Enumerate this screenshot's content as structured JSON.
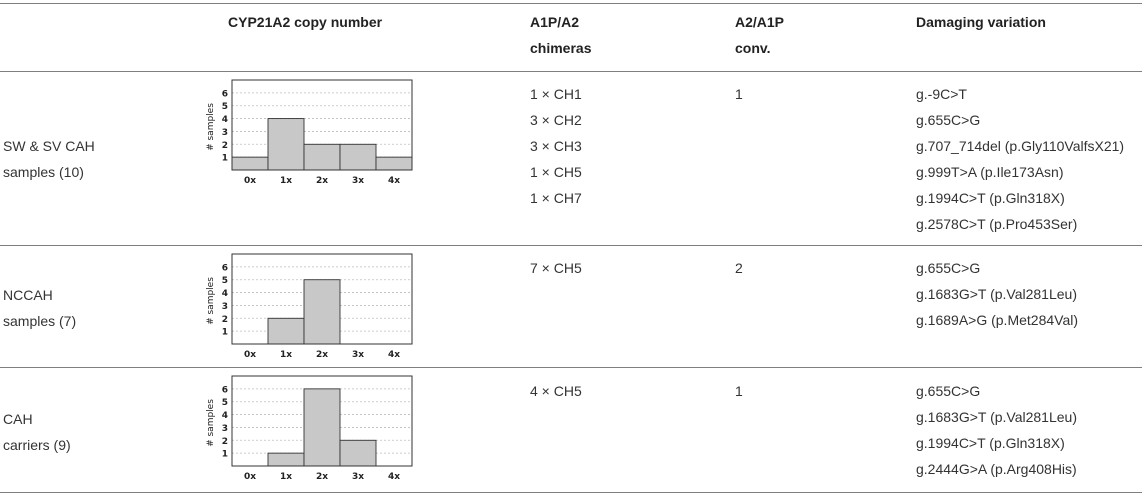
{
  "headers": {
    "group": "",
    "copy_number": "CYP21A2 copy number",
    "chimeras_line1": "A1P/A2",
    "chimeras_line2": "chimeras",
    "conv_line1": "A2/A1P",
    "conv_line2": "conv.",
    "damaging": "Damaging variation"
  },
  "rows": [
    {
      "group_line1": "SW & SV CAH",
      "group_line2": "samples (10)",
      "chimeras": [
        "1 × CH1",
        "3 × CH2",
        "3 × CH3",
        "1 × CH5",
        "1 × CH7"
      ],
      "conv": "1",
      "damaging": [
        "g.-9C>T",
        "g.655C>G",
        "g.707_714del (p.Gly110ValfsX21)",
        "g.999T>A (p.Ile173Asn)",
        "g.1994C>T (p.Gln318X)",
        "g.2578C>T (p.Pro453Ser)"
      ]
    },
    {
      "group_line1": "NCCAH",
      "group_line2": "samples (7)",
      "chimeras": [
        "7 × CH5"
      ],
      "conv": "2",
      "damaging": [
        "g.655C>G",
        "g.1683G>T (p.Val281Leu)",
        "g.1689A>G (p.Met284Val)"
      ]
    },
    {
      "group_line1": "CAH",
      "group_line2": "carriers (9)",
      "chimeras": [
        "4 × CH5"
      ],
      "conv": "1",
      "damaging": [
        "g.655C>G",
        "g.1683G>T (p.Val281Leu)",
        "g.1994C>T (p.Gln318X)",
        "g.2444G>A (p.Arg408His)"
      ]
    }
  ],
  "chart_data": [
    {
      "type": "bar",
      "categories": [
        "0x",
        "1x",
        "2x",
        "3x",
        "4x"
      ],
      "values": [
        1,
        4,
        2,
        2,
        1
      ],
      "ylabel": "# samples",
      "yticks": [
        1,
        2,
        3,
        4,
        5,
        6
      ],
      "ylim": [
        0,
        7
      ],
      "grid": true,
      "bar_color": "#c8c8c8"
    },
    {
      "type": "bar",
      "categories": [
        "0x",
        "1x",
        "2x",
        "3x",
        "4x"
      ],
      "values": [
        0,
        2,
        5,
        0,
        0
      ],
      "ylabel": "# samples",
      "yticks": [
        1,
        2,
        3,
        4,
        5,
        6
      ],
      "ylim": [
        0,
        7
      ],
      "grid": true,
      "bar_color": "#c8c8c8"
    },
    {
      "type": "bar",
      "categories": [
        "0x",
        "1x",
        "2x",
        "3x",
        "4x"
      ],
      "values": [
        0,
        1,
        6,
        2,
        0
      ],
      "ylabel": "# samples",
      "yticks": [
        1,
        2,
        3,
        4,
        5,
        6
      ],
      "ylim": [
        0,
        7
      ],
      "grid": true,
      "bar_color": "#c8c8c8"
    }
  ]
}
